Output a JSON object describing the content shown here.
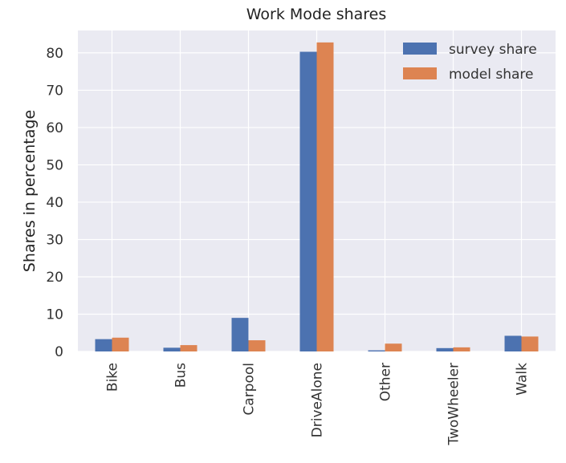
{
  "chart_data": {
    "type": "bar",
    "title": "Work Mode shares",
    "xlabel": "",
    "ylabel": "Shares in percentage",
    "categories": [
      "Bike",
      "Bus",
      "Carpool",
      "DriveAlone",
      "Other",
      "TwoWheeler",
      "Walk"
    ],
    "series": [
      {
        "name": "survey share",
        "color": "#4c72b0",
        "values": [
          3.3,
          1.0,
          9.0,
          80.3,
          0.3,
          0.9,
          4.2
        ]
      },
      {
        "name": "model share",
        "color": "#dd8452",
        "values": [
          3.7,
          1.7,
          3.0,
          82.8,
          2.1,
          1.1,
          4.0
        ]
      }
    ],
    "ylim": [
      0,
      86
    ],
    "yticks": [
      0,
      10,
      20,
      30,
      40,
      50,
      60,
      70,
      80
    ],
    "grid": true,
    "legend_position": "top-right",
    "plot_background": "#eaeaf2",
    "grid_color": "#ffffff"
  }
}
